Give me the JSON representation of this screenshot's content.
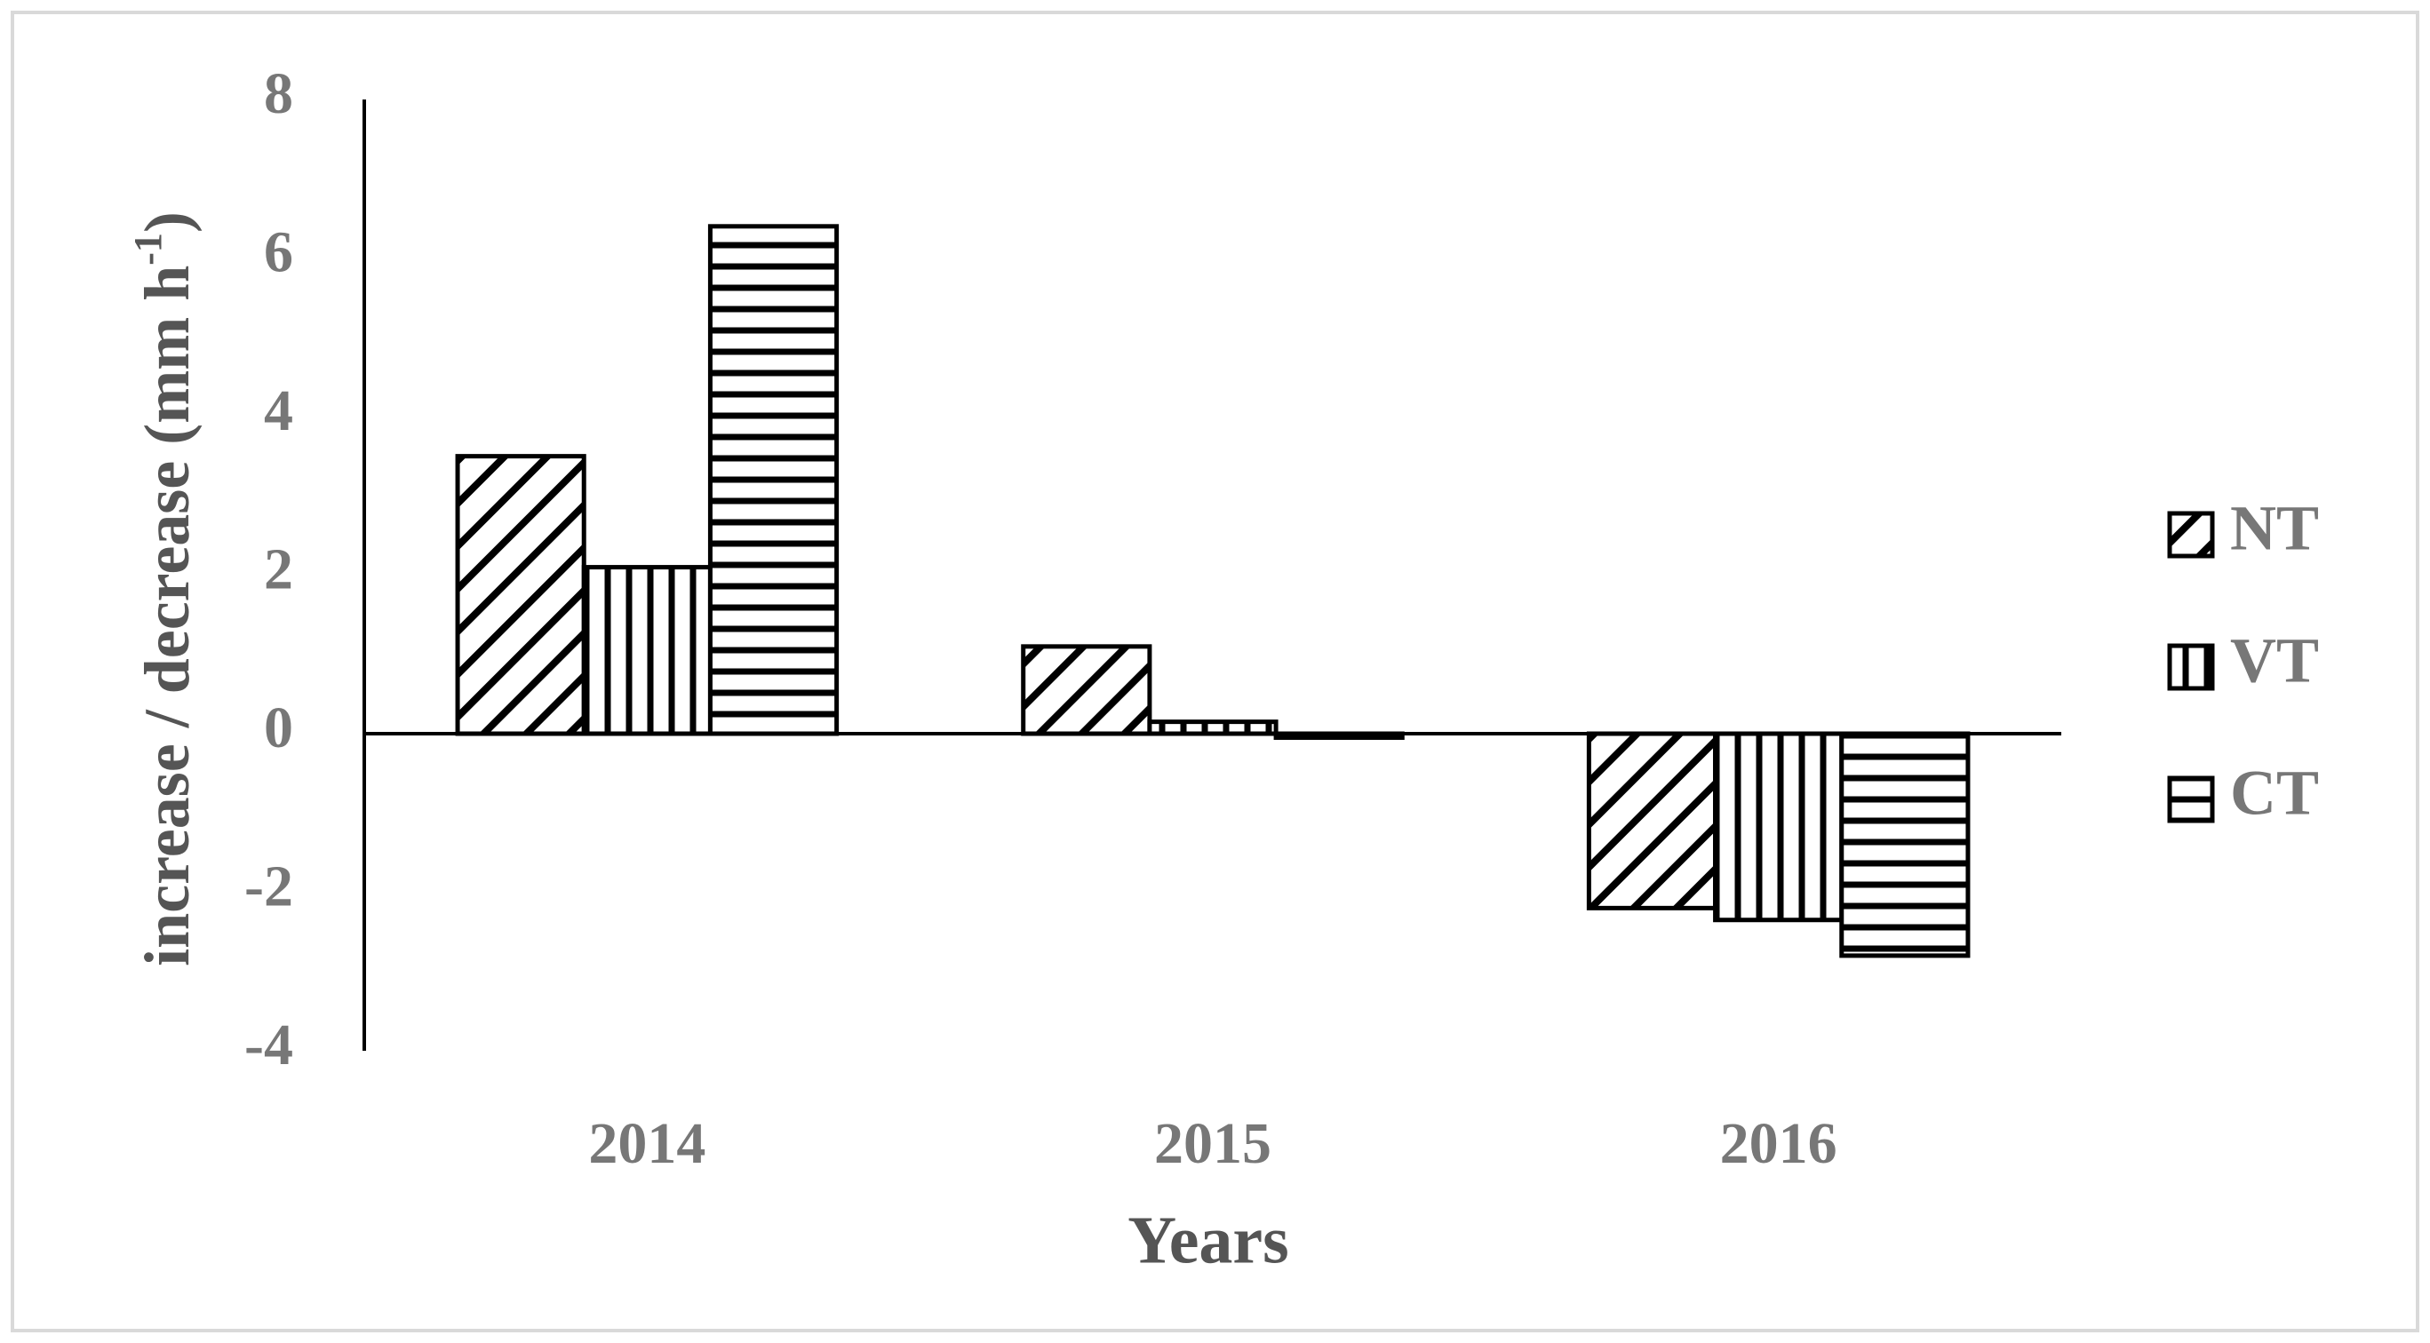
{
  "chart_data": {
    "type": "bar",
    "x_label": "Years",
    "y_label": "increase / decrease  (mm h",
    "y_label_sup": "-1",
    "y_label_end": ")",
    "categories": [
      "2014",
      "2015",
      "2016"
    ],
    "series": [
      {
        "name": "NT",
        "color": "#000000",
        "pattern": "diagonal",
        "values": [
          3.5,
          1.1,
          -2.2
        ]
      },
      {
        "name": "VT",
        "color": "#000000",
        "pattern": "vertical",
        "values": [
          2.1,
          0.15,
          -2.35
        ]
      },
      {
        "name": "CT",
        "color": "#000000",
        "pattern": "horizontal",
        "values": [
          6.4,
          -0.05,
          -2.8
        ]
      }
    ],
    "ylim": [
      -4,
      8
    ],
    "yticks": [
      -4,
      -2,
      0,
      2,
      4,
      6,
      8
    ],
    "grid": false,
    "legend": "right"
  }
}
